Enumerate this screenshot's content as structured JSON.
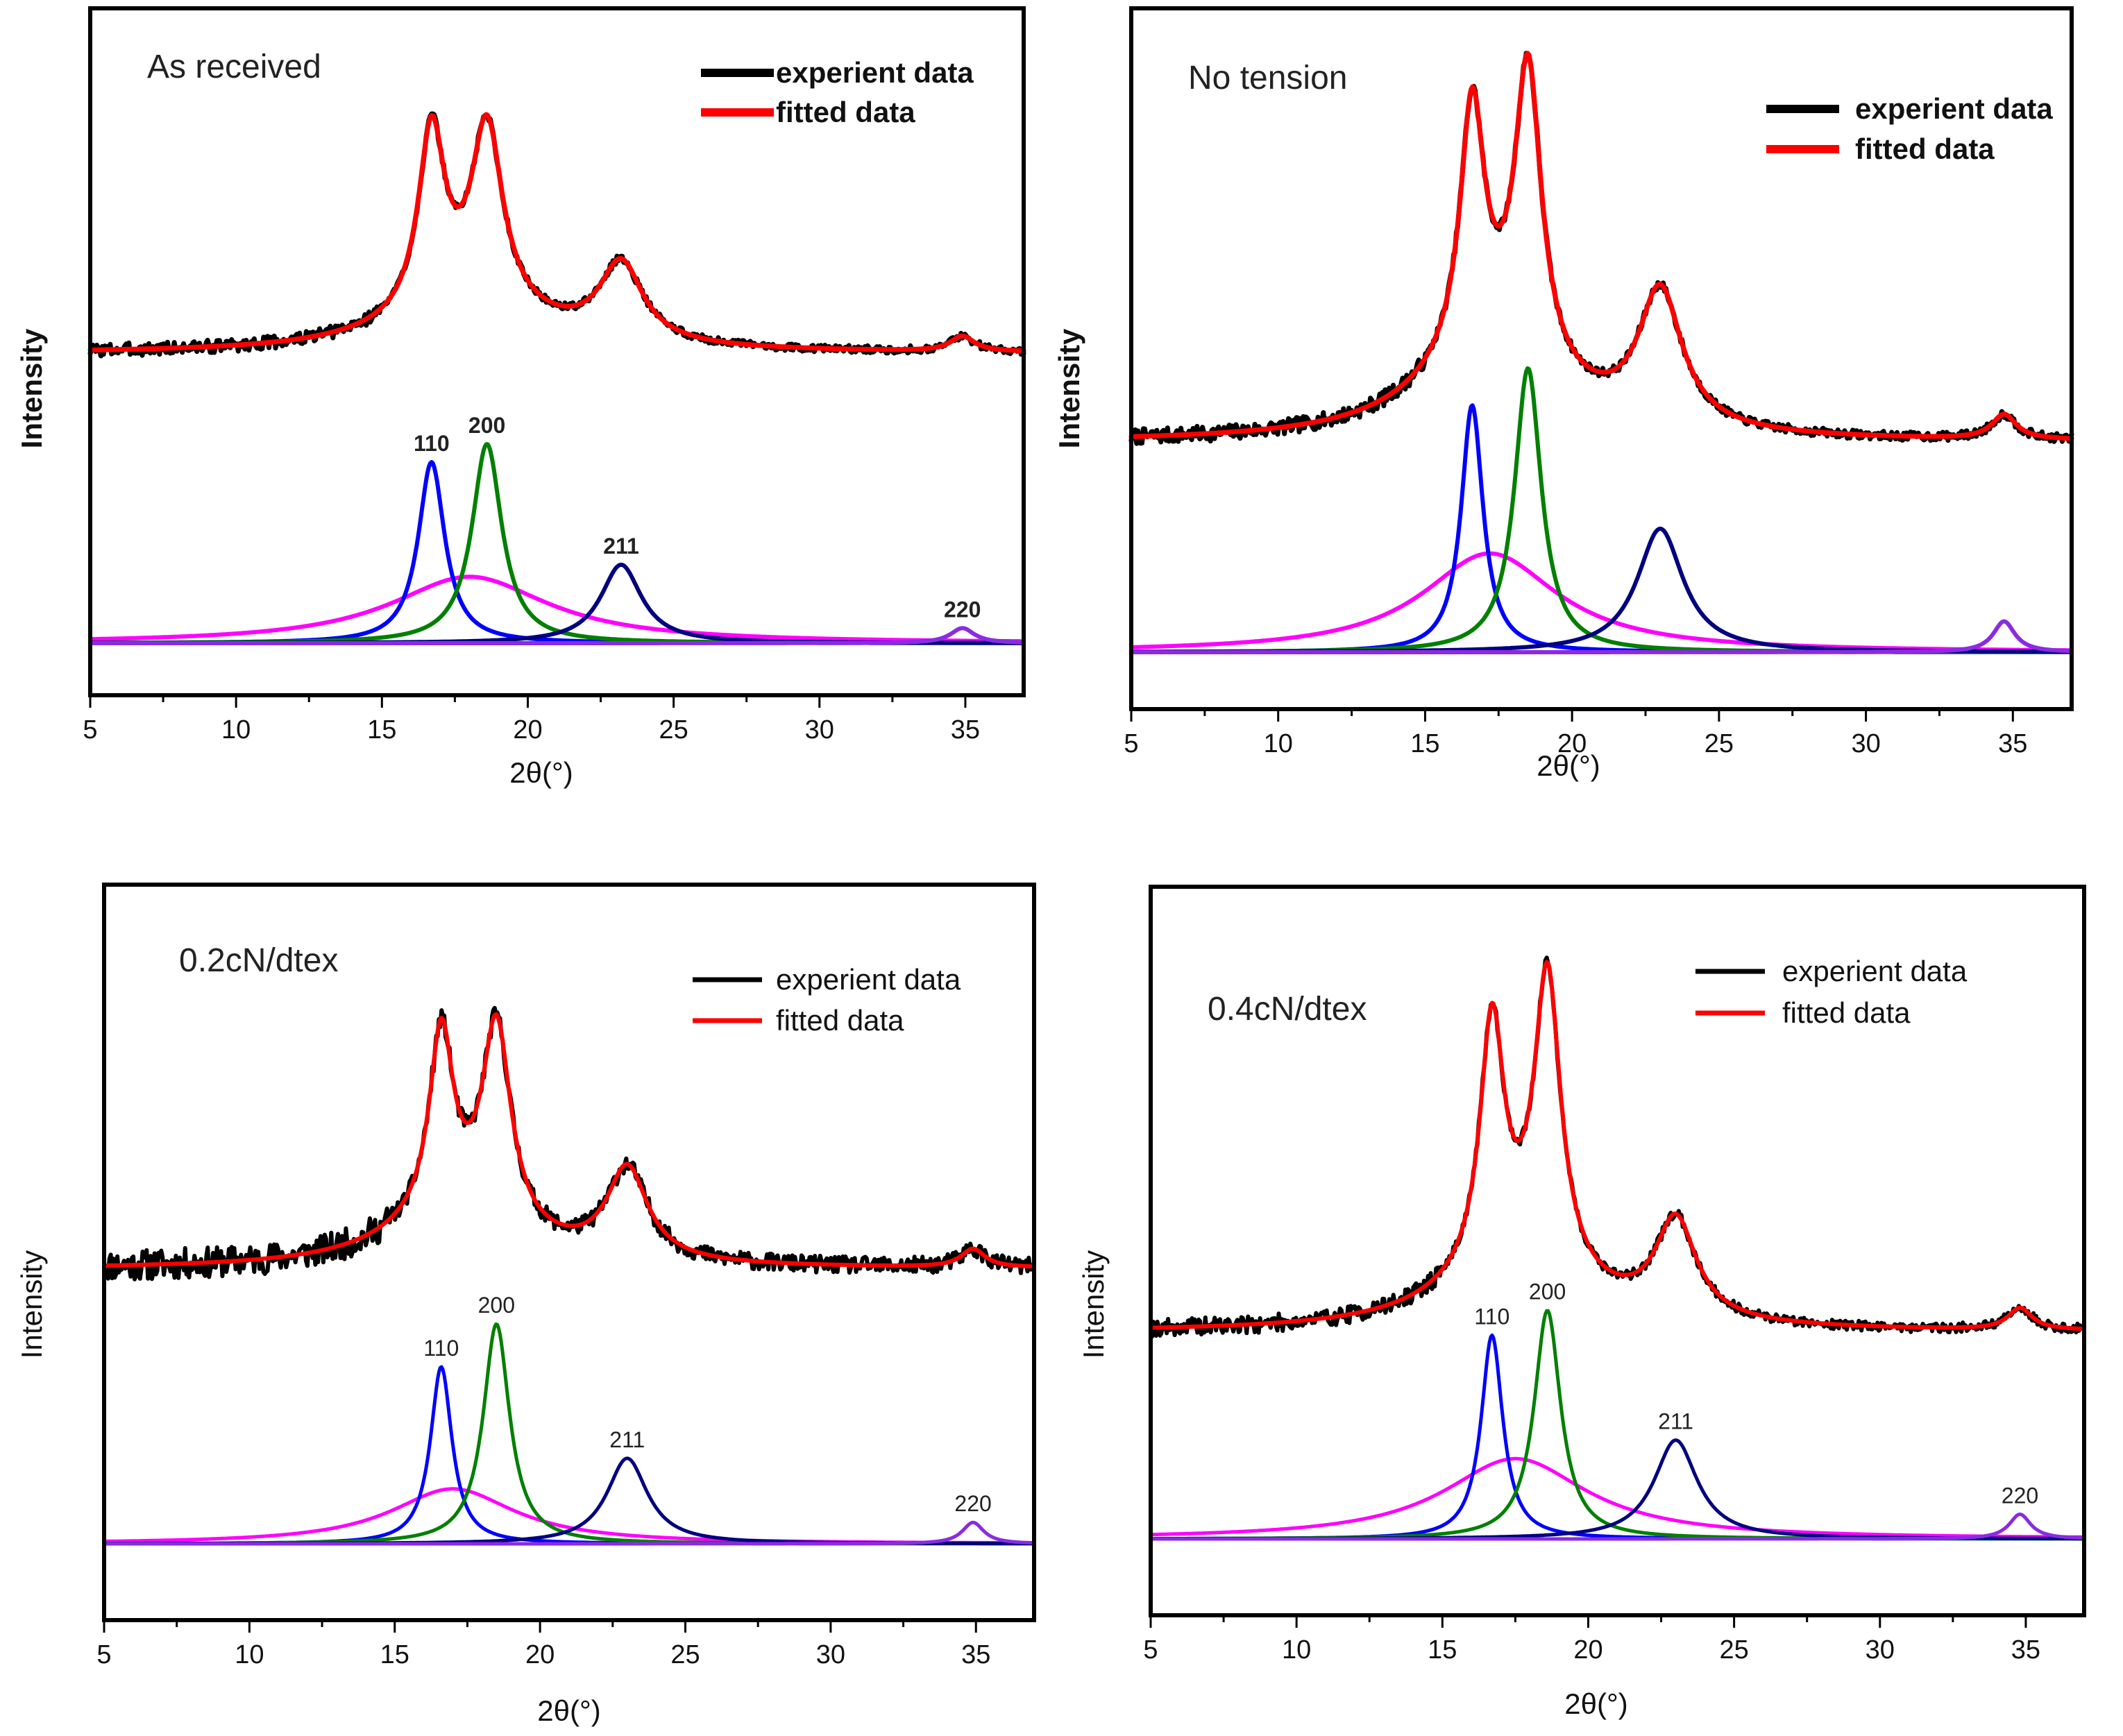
{
  "chart_data": [
    {
      "type": "line",
      "title": "As received",
      "xlabel": "2θ(°)",
      "ylabel": "Intensity",
      "xlim": [
        5,
        37
      ],
      "ylim": [
        0,
        1
      ],
      "xticks": [
        5,
        10,
        15,
        20,
        25,
        30,
        35
      ],
      "legend": {
        "position": "top-right",
        "entries": [
          "experient data",
          "fitted data"
        ]
      },
      "experimental": {
        "name": "experient data",
        "color": "#000000",
        "baseline": 0.48,
        "noise": 0.006,
        "seed": 3
      },
      "fitted": {
        "name": "fitted data",
        "color": "#ff0000",
        "baseline": 0.48,
        "peaks": [
          {
            "center": 16.7,
            "height": 0.3,
            "width": 0.55
          },
          {
            "center": 18.6,
            "height": 0.3,
            "width": 0.65
          },
          {
            "center": 23.2,
            "height": 0.13,
            "width": 0.9
          },
          {
            "center": 34.9,
            "height": 0.025,
            "width": 0.5
          },
          {
            "center": 18.0,
            "height": 0.07,
            "width": 3.2
          }
        ]
      },
      "components": [
        {
          "label": "",
          "color": "#ff00ff",
          "center": 18.0,
          "height": 0.11,
          "width": 3.3
        },
        {
          "label": "110",
          "color": "#0000ff",
          "center": 16.7,
          "height": 0.3,
          "width": 0.55
        },
        {
          "label": "200",
          "color": "#008000",
          "center": 18.6,
          "height": 0.33,
          "width": 0.62
        },
        {
          "label": "211",
          "color": "#000080",
          "center": 23.2,
          "height": 0.13,
          "width": 0.85
        },
        {
          "label": "220",
          "color": "#8a2be2",
          "center": 34.9,
          "height": 0.025,
          "width": 0.5
        }
      ]
    },
    {
      "type": "line",
      "title": "No tension",
      "xlabel": "2θ(°)",
      "ylabel": "Intensity",
      "xlim": [
        5,
        37
      ],
      "ylim": [
        0,
        1
      ],
      "xticks": [
        5,
        10,
        15,
        20,
        25,
        30,
        35
      ],
      "legend": {
        "position": "top-right",
        "entries": [
          "experient data",
          "fitted data"
        ]
      },
      "experimental": {
        "name": "experient data",
        "color": "#000000",
        "baseline": 0.34,
        "noise": 0.007,
        "seed": 7
      },
      "fitted": {
        "name": "fitted data",
        "color": "#ff0000",
        "baseline": 0.34,
        "peaks": [
          {
            "center": 16.6,
            "height": 0.4,
            "width": 0.5
          },
          {
            "center": 18.5,
            "height": 0.48,
            "width": 0.55
          },
          {
            "center": 23.0,
            "height": 0.22,
            "width": 0.9
          },
          {
            "center": 34.7,
            "height": 0.04,
            "width": 0.5
          },
          {
            "center": 17.2,
            "height": 0.14,
            "width": 2.8
          }
        ]
      },
      "components": [
        {
          "label": "",
          "color": "#ff00ff",
          "center": 17.2,
          "height": 0.16,
          "width": 2.8
        },
        {
          "label": "",
          "color": "#0000ff",
          "center": 16.6,
          "height": 0.4,
          "width": 0.45
        },
        {
          "label": "",
          "color": "#008000",
          "center": 18.5,
          "height": 0.46,
          "width": 0.55
        },
        {
          "label": "",
          "color": "#000080",
          "center": 23.0,
          "height": 0.2,
          "width": 0.95
        },
        {
          "label": "",
          "color": "#8a2be2",
          "center": 34.7,
          "height": 0.05,
          "width": 0.45
        }
      ]
    },
    {
      "type": "line",
      "title": "0.2cN/dtex",
      "xlabel": "2θ(°)",
      "ylabel": "Intensity",
      "xlim": [
        5,
        37
      ],
      "ylim": [
        0,
        1
      ],
      "xticks": [
        5,
        10,
        15,
        20,
        25,
        30,
        35
      ],
      "legend": {
        "position": "top-right",
        "entries": [
          "experient data",
          "fitted data"
        ]
      },
      "experimental": {
        "name": "experient data",
        "color": "#000000",
        "baseline": 0.45,
        "noise": 0.014,
        "seed": 11
      },
      "fitted": {
        "name": "fitted data",
        "color": "#ff0000",
        "baseline": 0.45,
        "peaks": [
          {
            "center": 16.6,
            "height": 0.3,
            "width": 0.5
          },
          {
            "center": 18.5,
            "height": 0.33,
            "width": 0.6
          },
          {
            "center": 23.0,
            "height": 0.15,
            "width": 0.85
          },
          {
            "center": 34.9,
            "height": 0.03,
            "width": 0.5
          },
          {
            "center": 17.0,
            "height": 0.08,
            "width": 2.8
          }
        ]
      },
      "components": [
        {
          "label": "",
          "color": "#ff00ff",
          "center": 17.0,
          "height": 0.09,
          "width": 2.6
        },
        {
          "label": "110",
          "color": "#0000ff",
          "center": 16.6,
          "height": 0.29,
          "width": 0.45
        },
        {
          "label": "200",
          "color": "#008000",
          "center": 18.5,
          "height": 0.36,
          "width": 0.55
        },
        {
          "label": "211",
          "color": "#000080",
          "center": 23.0,
          "height": 0.14,
          "width": 0.85
        },
        {
          "label": "220",
          "color": "#8a2be2",
          "center": 34.9,
          "height": 0.035,
          "width": 0.45
        }
      ]
    },
    {
      "type": "line",
      "title": "0.4cN/dtex",
      "xlabel": "2θ(°)",
      "ylabel": "Intensity",
      "xlim": [
        5,
        37
      ],
      "ylim": [
        0,
        1
      ],
      "xticks": [
        5,
        10,
        15,
        20,
        25,
        30,
        35
      ],
      "legend": {
        "position": "top-right",
        "entries": [
          "experient data",
          "fitted data"
        ]
      },
      "experimental": {
        "name": "experient data",
        "color": "#000000",
        "baseline": 0.335,
        "noise": 0.008,
        "seed": 19
      },
      "fitted": {
        "name": "fitted data",
        "color": "#ff0000",
        "baseline": 0.335,
        "peaks": [
          {
            "center": 16.7,
            "height": 0.4,
            "width": 0.5
          },
          {
            "center": 18.6,
            "height": 0.48,
            "width": 0.55
          },
          {
            "center": 23.0,
            "height": 0.16,
            "width": 0.85
          },
          {
            "center": 34.8,
            "height": 0.035,
            "width": 0.5
          },
          {
            "center": 17.5,
            "height": 0.1,
            "width": 2.9
          }
        ]
      },
      "components": [
        {
          "label": "",
          "color": "#ff00ff",
          "center": 17.5,
          "height": 0.13,
          "width": 3.0
        },
        {
          "label": "110",
          "color": "#0000ff",
          "center": 16.7,
          "height": 0.33,
          "width": 0.45
        },
        {
          "label": "200",
          "color": "#008000",
          "center": 18.6,
          "height": 0.37,
          "width": 0.55
        },
        {
          "label": "211",
          "color": "#000080",
          "center": 23.0,
          "height": 0.16,
          "width": 0.9
        },
        {
          "label": "220",
          "color": "#8a2be2",
          "center": 34.8,
          "height": 0.04,
          "width": 0.45
        }
      ]
    }
  ]
}
